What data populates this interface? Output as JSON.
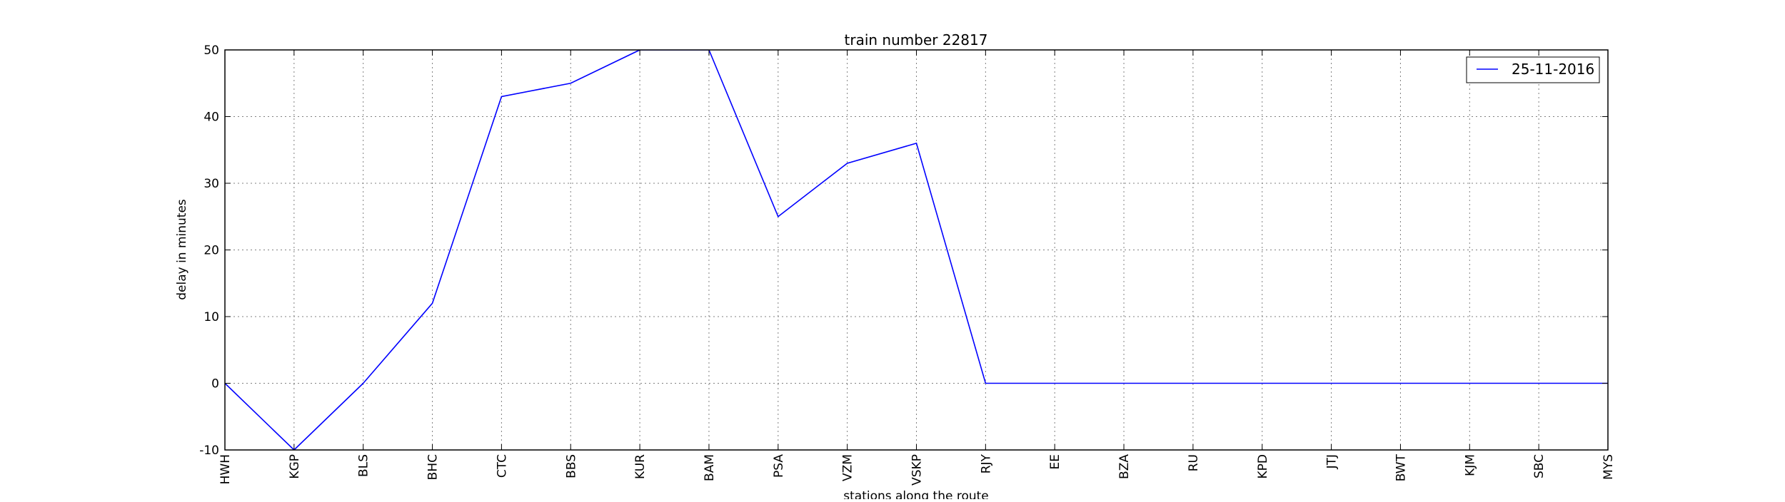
{
  "chart_data": {
    "type": "line",
    "title": "train number 22817",
    "xlabel": "stations along the route",
    "ylabel": "delay in minutes",
    "categories": [
      "HWH",
      "KGP",
      "BLS",
      "BHC",
      "CTC",
      "BBS",
      "KUR",
      "BAM",
      "PSA",
      "VZM",
      "VSKP",
      "RJY",
      "EE",
      "BZA",
      "RU",
      "KPD",
      "JTJ",
      "BWT",
      "KJM",
      "SBC",
      "MYS"
    ],
    "series": [
      {
        "name": "25-11-2016",
        "color": "#0000ff",
        "values": [
          0,
          -10,
          0,
          12,
          43,
          45,
          50,
          50,
          25,
          33,
          36,
          0,
          0,
          0,
          0,
          0,
          0,
          0,
          0,
          0,
          0
        ]
      }
    ],
    "ylim": [
      -10,
      50
    ],
    "yticks": [
      -10,
      0,
      10,
      20,
      30,
      40,
      50
    ],
    "grid": true,
    "legend_position": "top-right"
  }
}
